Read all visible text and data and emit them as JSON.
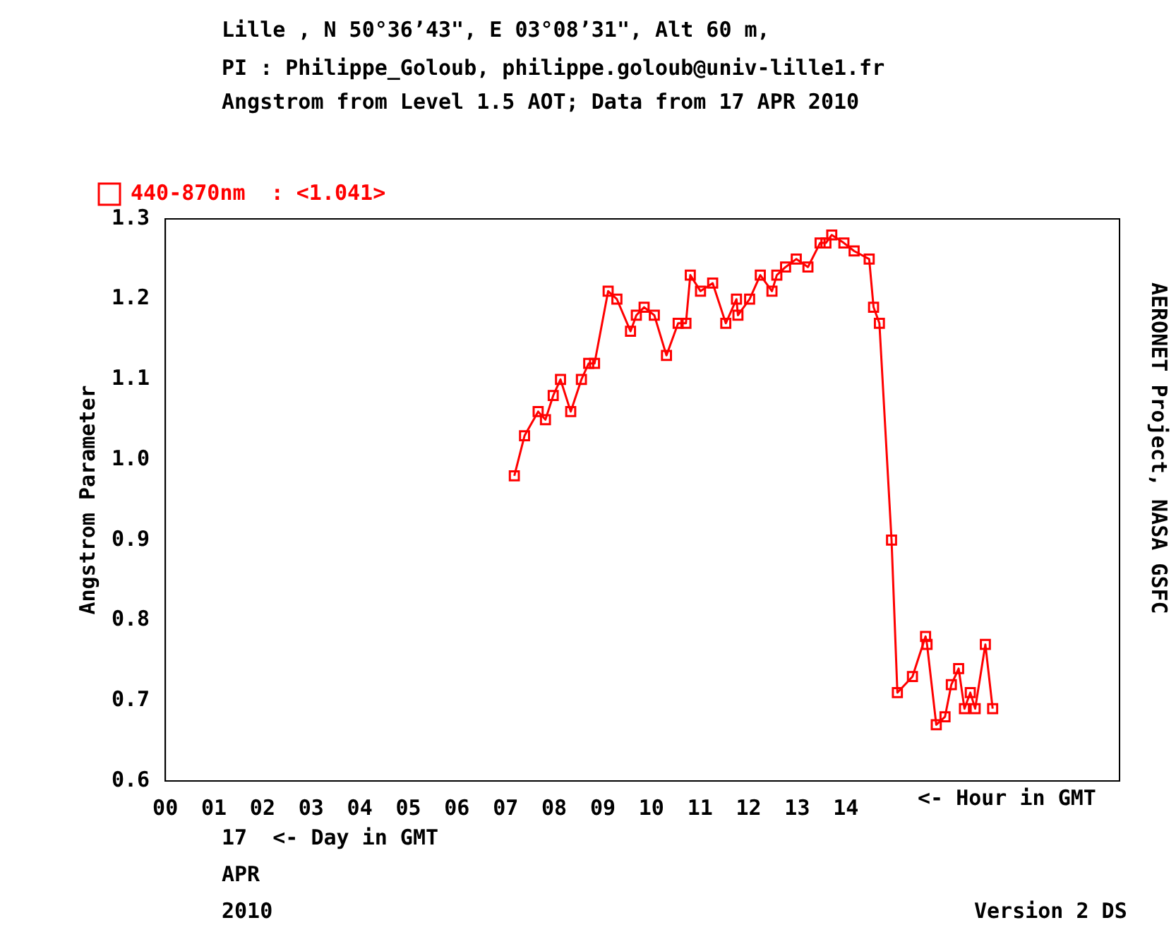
{
  "chart_data": {
    "type": "line",
    "title": "Lille , N 50°36’43\", E 03°08’31\", Alt 60 m,",
    "subtitle": "PI : Philippe_Goloub, philippe.goloub@univ-lille1.fr\nAngstrom from Level 1.5 AOT; Data from 17 APR 2010",
    "xlabel": "<- Hour in GMT",
    "ylabel": "Angstrom Parameter",
    "annotations": [
      "AERONET Project, NASA GSFC",
      "17  <- Day in GMT",
      "APR",
      "2010",
      "Version 2 DS"
    ],
    "xlim": [
      0,
      19.63
    ],
    "xticks": [
      {
        "value": 0,
        "label": "00"
      },
      {
        "value": 1,
        "label": "01"
      },
      {
        "value": 2,
        "label": "02"
      },
      {
        "value": 3,
        "label": "03"
      },
      {
        "value": 4,
        "label": "04"
      },
      {
        "value": 5,
        "label": "05"
      },
      {
        "value": 6,
        "label": "06"
      },
      {
        "value": 7,
        "label": "07"
      },
      {
        "value": 8,
        "label": "08"
      },
      {
        "value": 9,
        "label": "09"
      },
      10,
      11,
      12,
      13,
      14
    ],
    "ylim": [
      0.6,
      1.3
    ],
    "yticks": [
      0.6,
      0.7,
      0.8,
      0.9,
      {
        "value": 1,
        "label": "1.0"
      },
      1.1,
      1.2,
      1.3
    ],
    "grid": false,
    "legend": "top left",
    "marker": "square",
    "line_style": "solid",
    "series": [
      {
        "name": "440-870nm  : <1.041>",
        "color": "#ff0000",
        "x": [
          7.18,
          7.39,
          7.67,
          7.82,
          7.98,
          8.13,
          8.34,
          8.56,
          8.71,
          8.83,
          9.11,
          9.29,
          9.57,
          9.69,
          9.85,
          10.06,
          10.31,
          10.55,
          10.71,
          10.8,
          11.01,
          11.26,
          11.53,
          11.75,
          11.78,
          12.02,
          12.24,
          12.48,
          12.58,
          12.76,
          12.98,
          13.22,
          13.47,
          13.59,
          13.71,
          13.96,
          14.17,
          14.48,
          14.57,
          14.69,
          14.94,
          15.06,
          15.37,
          15.64,
          15.67,
          15.86,
          16.04,
          16.17,
          16.32,
          16.44,
          16.56,
          16.66,
          16.87,
          17.02
        ],
        "values": [
          0.98,
          1.03,
          1.06,
          1.05,
          1.08,
          1.1,
          1.06,
          1.1,
          1.12,
          1.12,
          1.21,
          1.2,
          1.16,
          1.18,
          1.19,
          1.18,
          1.13,
          1.17,
          1.17,
          1.23,
          1.21,
          1.22,
          1.17,
          1.2,
          1.18,
          1.2,
          1.23,
          1.21,
          1.23,
          1.24,
          1.25,
          1.24,
          1.27,
          1.27,
          1.28,
          1.27,
          1.26,
          1.25,
          1.19,
          1.17,
          0.9,
          0.71,
          0.73,
          0.78,
          0.77,
          0.67,
          0.68,
          0.72,
          0.74,
          0.69,
          0.71,
          0.69,
          0.77,
          0.69
        ]
      }
    ]
  }
}
